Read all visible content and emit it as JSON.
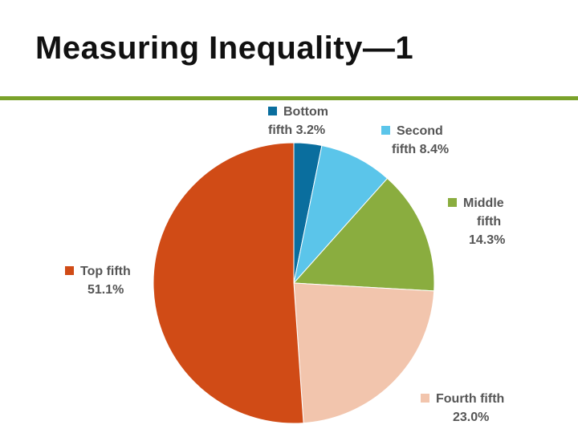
{
  "slide": {
    "title": "Measuring Inequality—1",
    "rule_color": "#7aa22a"
  },
  "chart_data": {
    "type": "pie",
    "title": "",
    "start": "12 o'clock, clockwise",
    "slices": [
      {
        "name": "Bottom fifth",
        "value": 3.2,
        "label_line1": "Bottom",
        "label_line2": "fifth",
        "pct": "3.2%",
        "color": "#0a6e9e"
      },
      {
        "name": "Second fifth",
        "value": 8.4,
        "label_line1": "Second",
        "label_line2": "fifth",
        "pct": "8.4%",
        "color": "#5bc5ea"
      },
      {
        "name": "Middle fifth",
        "value": 14.3,
        "label_line1": "Middle",
        "label_line2": "fifth",
        "pct": "14.3%",
        "color": "#8aad3f"
      },
      {
        "name": "Fourth fifth",
        "value": 23.0,
        "label_line1": "Fourth fifth",
        "label_line2": "",
        "pct": "23.0%",
        "color": "#f2c5ad"
      },
      {
        "name": "Top fifth",
        "value": 51.1,
        "label_line1": "Top fifth",
        "label_line2": "",
        "pct": "51.1%",
        "color": "#d04b16"
      }
    ]
  }
}
